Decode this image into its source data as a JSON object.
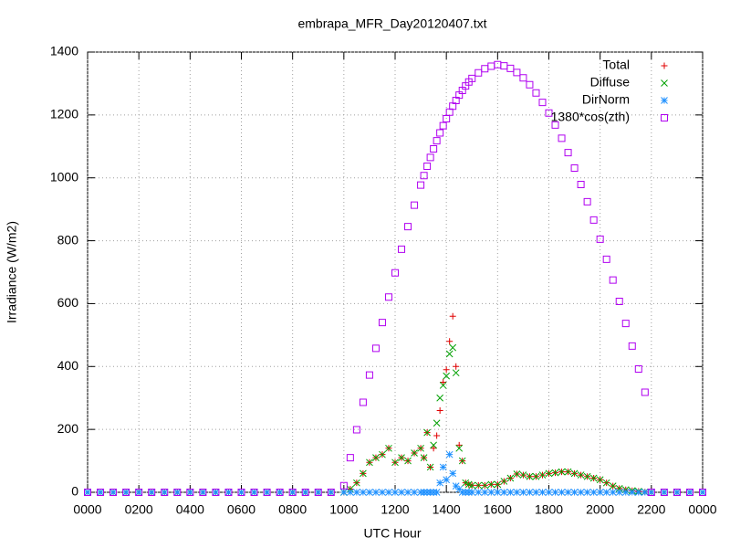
{
  "chart_data": {
    "type": "scatter",
    "title": "embrapa_MFR_Day20120407.txt",
    "xlabel": "UTC Hour",
    "ylabel": "Irradiance (W/m2)",
    "x": [
      0,
      0.5,
      1,
      1.5,
      2,
      2.5,
      3,
      3.5,
      4,
      4.5,
      5,
      5.5,
      6,
      6.5,
      7,
      7.5,
      8,
      8.5,
      9,
      9.5,
      10,
      10.25,
      10.5,
      10.75,
      11,
      11.25,
      11.5,
      11.75,
      12,
      12.25,
      12.5,
      12.75,
      13,
      13.125,
      13.25,
      13.375,
      13.5,
      13.625,
      13.75,
      13.875,
      14,
      14.125,
      14.25,
      14.375,
      14.5,
      14.625,
      14.75,
      14.875,
      15,
      15.25,
      15.5,
      15.75,
      16,
      16.25,
      16.5,
      16.75,
      17,
      17.25,
      17.5,
      17.75,
      18,
      18.25,
      18.5,
      18.75,
      19,
      19.25,
      19.5,
      19.75,
      20,
      20.25,
      20.5,
      20.75,
      21,
      21.25,
      21.5,
      21.75,
      22,
      22.5,
      23,
      23.5,
      24
    ],
    "series": [
      {
        "name": "Total",
        "color": "#e00000",
        "marker": "plus",
        "values": [
          0,
          0,
          0,
          0,
          0,
          0,
          0,
          0,
          0,
          0,
          0,
          0,
          0,
          0,
          0,
          0,
          0,
          0,
          0,
          0,
          0,
          10,
          30,
          60,
          95,
          110,
          120,
          140,
          95,
          110,
          100,
          125,
          140,
          110,
          190,
          80,
          140,
          180,
          260,
          350,
          390,
          480,
          560,
          400,
          150,
          100,
          30,
          25,
          22,
          22,
          22,
          25,
          25,
          35,
          45,
          58,
          55,
          50,
          50,
          55,
          60,
          62,
          65,
          65,
          60,
          55,
          50,
          45,
          40,
          30,
          20,
          12,
          8,
          5,
          3,
          1,
          0,
          0,
          0,
          0,
          0
        ]
      },
      {
        "name": "Diffuse",
        "color": "#00a000",
        "marker": "cross",
        "values": [
          0,
          0,
          0,
          0,
          0,
          0,
          0,
          0,
          0,
          0,
          0,
          0,
          0,
          0,
          0,
          0,
          0,
          0,
          0,
          0,
          0,
          10,
          30,
          60,
          95,
          110,
          120,
          140,
          95,
          110,
          100,
          125,
          140,
          110,
          190,
          80,
          150,
          220,
          300,
          340,
          370,
          440,
          460,
          380,
          140,
          100,
          30,
          25,
          22,
          22,
          22,
          25,
          25,
          35,
          45,
          58,
          55,
          50,
          50,
          55,
          60,
          62,
          65,
          65,
          60,
          55,
          50,
          45,
          40,
          30,
          20,
          12,
          8,
          5,
          3,
          1,
          0,
          0,
          0,
          0,
          0
        ]
      },
      {
        "name": "DirNorm",
        "color": "#1e90ff",
        "marker": "star",
        "values": [
          0,
          0,
          0,
          0,
          0,
          0,
          0,
          0,
          0,
          0,
          0,
          0,
          0,
          0,
          0,
          0,
          0,
          0,
          0,
          0,
          0,
          0,
          0,
          0,
          0,
          0,
          0,
          0,
          0,
          0,
          0,
          0,
          0,
          0,
          0,
          0,
          0,
          0,
          30,
          80,
          40,
          120,
          60,
          20,
          10,
          0,
          0,
          0,
          0,
          0,
          0,
          0,
          0,
          0,
          0,
          0,
          0,
          0,
          0,
          0,
          0,
          0,
          0,
          0,
          0,
          0,
          0,
          0,
          0,
          0,
          0,
          0,
          0,
          0,
          0,
          0,
          0,
          0,
          0,
          0,
          0
        ]
      },
      {
        "name": "1380*cos(zth)",
        "color": "#b000f0",
        "marker": "square",
        "values": [
          0,
          0,
          0,
          0,
          0,
          0,
          0,
          0,
          0,
          0,
          0,
          0,
          0,
          0,
          0,
          0,
          0,
          0,
          0,
          0,
          21,
          110,
          199,
          286,
          373,
          458,
          540,
          621,
          698,
          773,
          845,
          913,
          977,
          1007,
          1037,
          1065,
          1092,
          1118,
          1143,
          1166,
          1188,
          1209,
          1228,
          1246,
          1263,
          1278,
          1292,
          1305,
          1316,
          1334,
          1347,
          1355,
          1360,
          1356,
          1348,
          1335,
          1318,
          1296,
          1270,
          1240,
          1206,
          1168,
          1126,
          1080,
          1031,
          979,
          924,
          866,
          805,
          741,
          675,
          607,
          537,
          465,
          392,
          318,
          0,
          0,
          0,
          0,
          0
        ]
      }
    ],
    "xlim": [
      0,
      24
    ],
    "xticks": [
      {
        "value": 0,
        "label": "0000"
      },
      {
        "value": 2,
        "label": "0200"
      },
      {
        "value": 4,
        "label": "0400"
      },
      {
        "value": 6,
        "label": "0600"
      },
      {
        "value": 8,
        "label": "0800"
      },
      {
        "value": 10,
        "label": "1000"
      },
      {
        "value": 12,
        "label": "1200"
      },
      {
        "value": 14,
        "label": "1400"
      },
      {
        "value": 16,
        "label": "1600"
      },
      {
        "value": 18,
        "label": "1800"
      },
      {
        "value": 20,
        "label": "2000"
      },
      {
        "value": 22,
        "label": "2200"
      },
      {
        "value": 24,
        "label": "0000"
      }
    ],
    "ylim": [
      0,
      1400
    ],
    "yticks": [
      0,
      200,
      400,
      600,
      800,
      1000,
      1200,
      1400
    ],
    "grid": true,
    "legend": "top-right"
  }
}
